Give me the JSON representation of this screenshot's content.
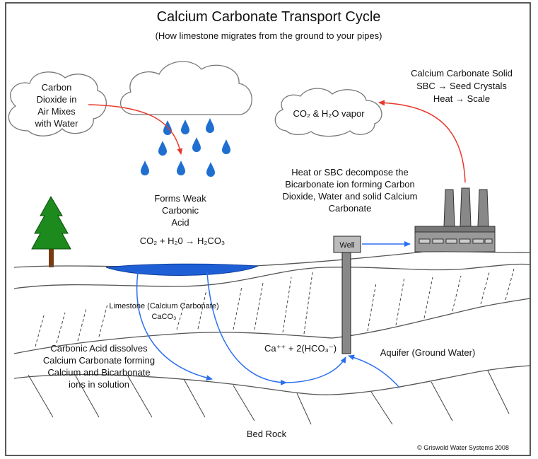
{
  "title": "Calcium Carbonate Transport Cycle",
  "subtitle": "(How limestone migrates from the ground to your pipes)",
  "labels": {
    "cloud": [
      "Carbon",
      "Dioxide in",
      "Air Mixes",
      "with Water"
    ],
    "vapor": "CO₂ & H₂O vapor",
    "solid": [
      "Calcium Carbonate Solid",
      "SBC → Seed Crystals",
      "Heat → Scale"
    ],
    "decompose": [
      "Heat or SBC decompose the",
      "Bicarbonate ion forming Carbon",
      "Dioxide, Water and solid Calcium",
      "Carbonate"
    ],
    "acid": [
      "Forms Weak",
      "Carbonic",
      "Acid"
    ],
    "reaction": "CO₂ + H₂0 → H₂CO₃",
    "well": "Well",
    "limestone": [
      "Limestone (Calcium Carbonate)",
      "CaCO₃"
    ],
    "dissolves": [
      "Carbonic Acid dissolves",
      "Calcium Carbonate forming",
      "Calcium and Bicarbonate",
      "ions in solution"
    ],
    "ions": "Ca⁺⁺ + 2(HCO₃⁻)",
    "aquifer": "Aquifer (Ground Water)",
    "bedrock": "Bed Rock",
    "copyright": "© Griswold Water Systems 2008"
  }
}
